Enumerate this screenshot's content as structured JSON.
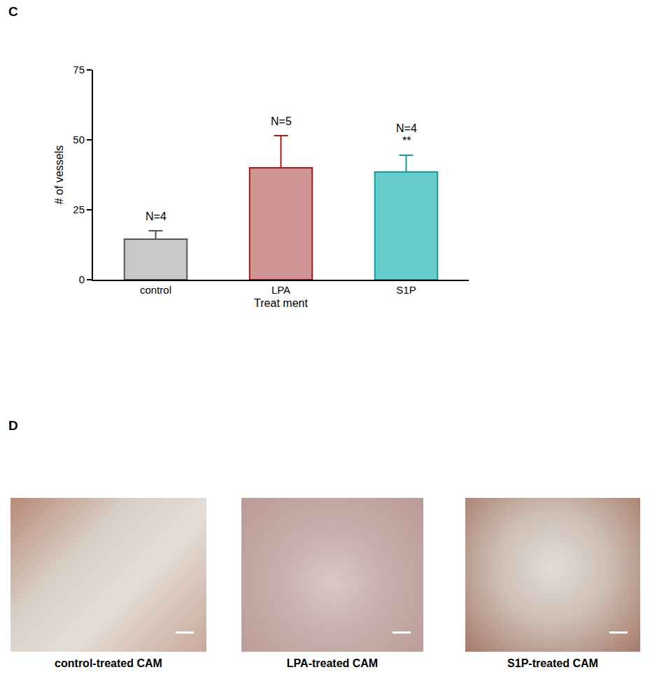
{
  "panel_labels": [
    "C",
    "D"
  ],
  "chart_data": {
    "type": "bar",
    "categories": [
      "control",
      "LPA",
      "S1P"
    ],
    "values": [
      14.5,
      40,
      38.5
    ],
    "errors": [
      3,
      11.5,
      6
    ],
    "colors": [
      "#c8c8c8",
      "#d09494",
      "#66cccc"
    ],
    "x_label": "Treat ment",
    "y_label": "# of vessels",
    "ylim": [
      0,
      75
    ],
    "yticks": [
      0,
      25,
      50,
      75
    ],
    "grid": false,
    "annotations": [
      {
        "category": "control",
        "text": "N=4"
      },
      {
        "category": "LPA",
        "text": "N=5"
      },
      {
        "category": "S1P",
        "text": "**"
      },
      {
        "category": "S1P",
        "text": "N=4"
      }
    ]
  },
  "images": [
    {
      "caption": "control-treated CAM"
    },
    {
      "caption": "LPA-treated CAM"
    },
    {
      "caption": "S1P-treated CAM"
    }
  ]
}
